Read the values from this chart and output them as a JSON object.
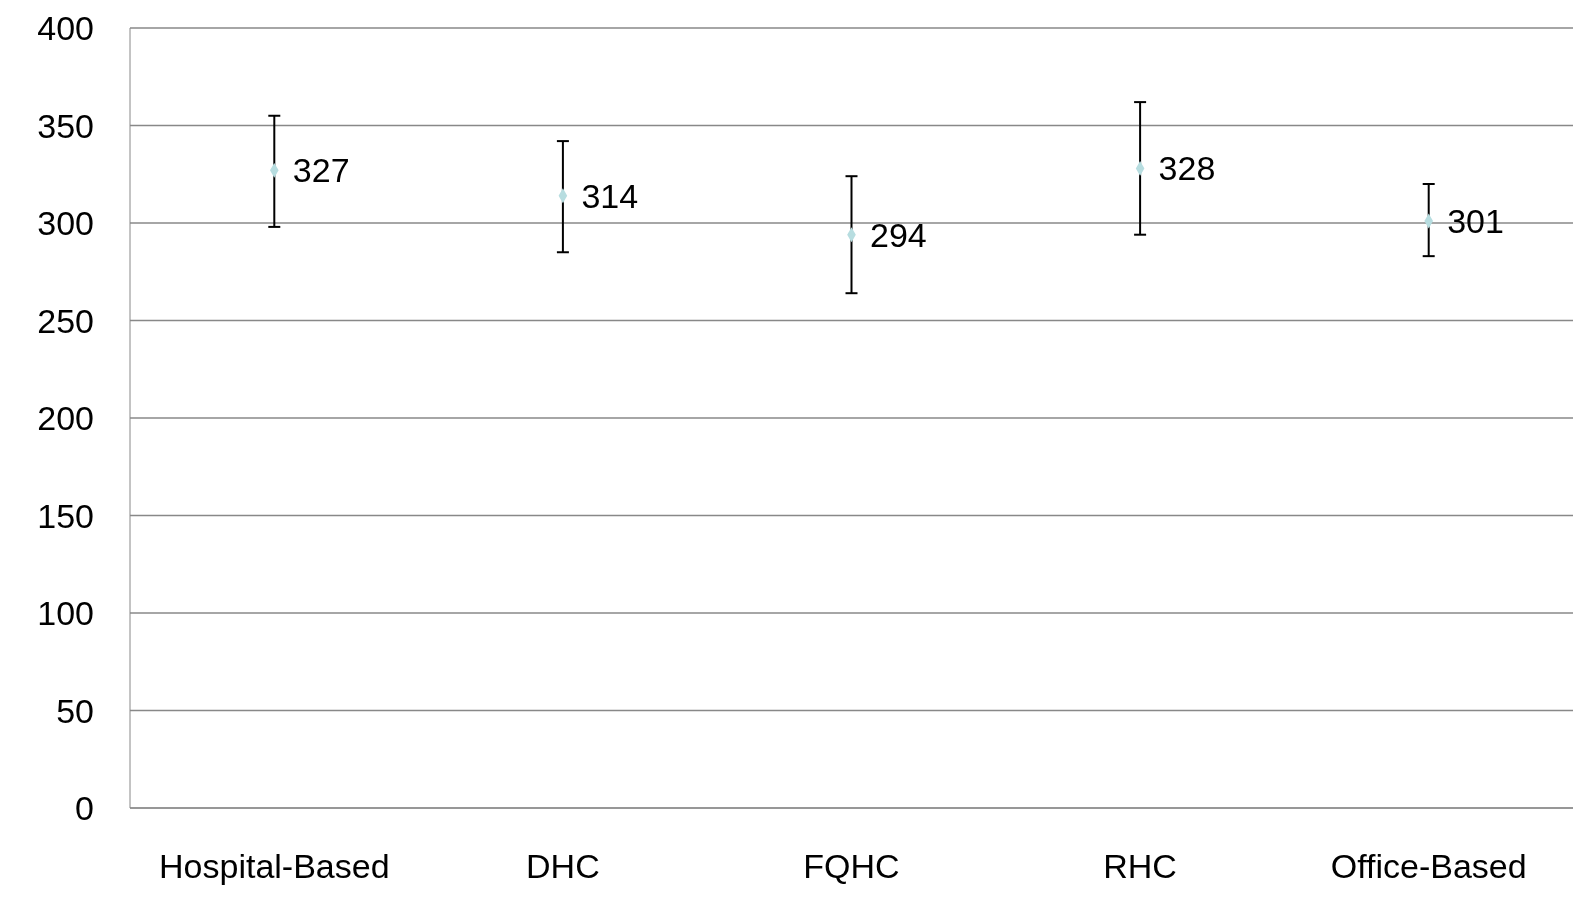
{
  "chart_data": {
    "type": "scatter",
    "categories": [
      "Hospital-Based",
      "DHC",
      "FQHC",
      "RHC",
      "Office-Based"
    ],
    "values": [
      327,
      314,
      294,
      328,
      301
    ],
    "errors": [
      [
        298,
        355
      ],
      [
        285,
        342
      ],
      [
        264,
        324
      ],
      [
        294,
        362
      ],
      [
        283,
        320
      ]
    ],
    "color": "#b7dde0",
    "marker": "diamond",
    "data_labels": true,
    "ylim": [
      0,
      400
    ],
    "yticks": [
      0,
      50,
      100,
      150,
      200,
      250,
      300,
      350,
      400
    ],
    "grid": "y"
  }
}
